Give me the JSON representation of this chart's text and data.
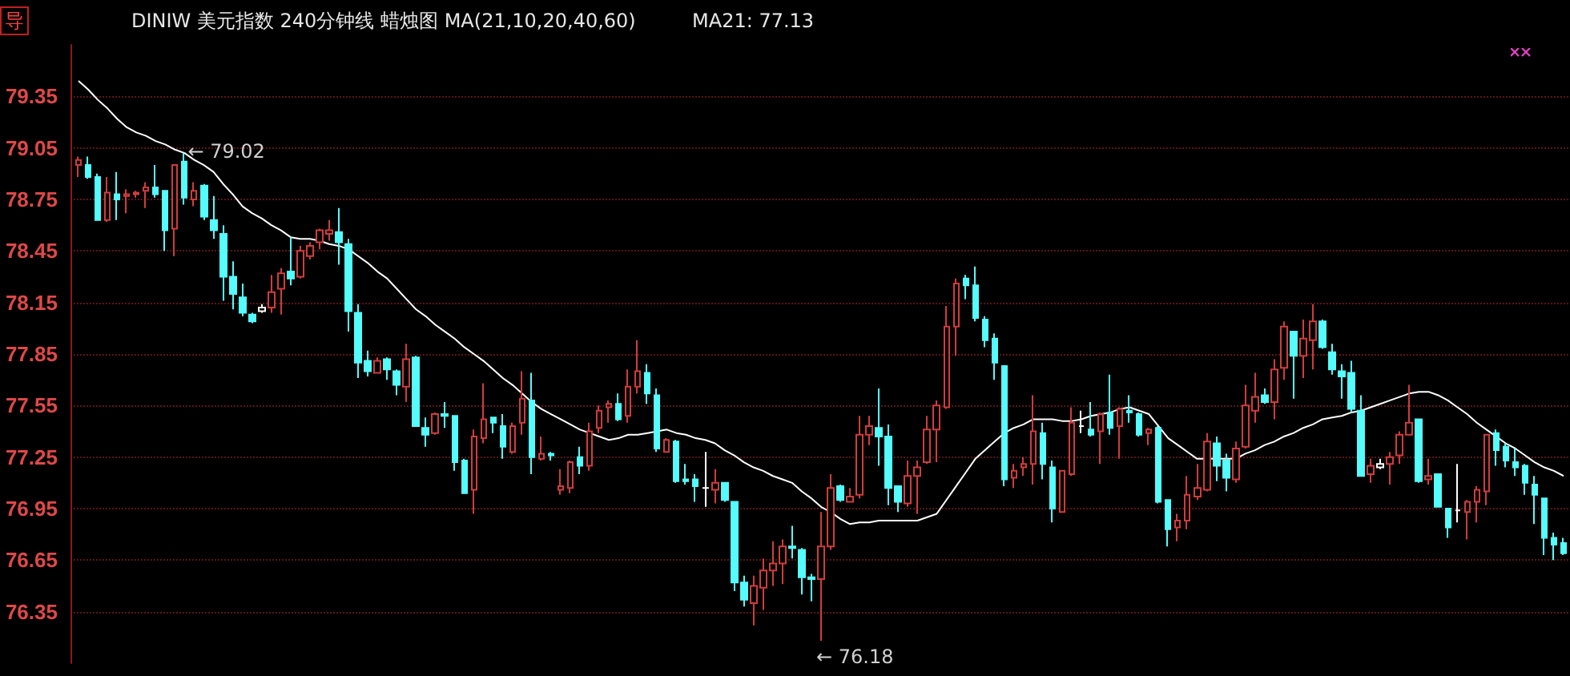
{
  "chart_data": {
    "type": "candlestick",
    "title": "DINIW 美元指数 240分钟线  蜡烛图 MA(21,10,20,40,60)",
    "annotations": [
      "导",
      "MA21: 77.13",
      "← 79.02",
      "← 76.18"
    ],
    "categories": [
      null,
      null,
      null,
      null,
      null,
      null,
      null,
      null,
      null,
      null,
      null,
      null,
      null,
      null,
      null,
      null,
      null,
      null,
      null,
      null,
      null,
      null,
      null,
      null,
      null,
      null,
      null,
      null,
      null,
      null,
      null,
      null,
      null,
      null,
      null,
      null,
      null,
      null,
      null,
      null,
      null,
      null,
      null,
      null,
      null,
      null,
      null,
      null,
      null,
      null,
      null,
      null,
      null,
      null,
      null,
      null,
      null,
      null,
      null,
      null,
      null,
      null,
      null,
      null,
      null,
      null,
      null,
      null,
      null,
      null,
      null,
      null,
      null,
      null,
      null,
      null,
      null,
      null,
      null,
      null,
      null,
      null,
      null,
      null,
      null,
      null,
      null,
      null,
      null,
      null,
      null,
      null,
      null,
      null,
      null,
      null,
      null,
      null,
      null,
      null,
      null,
      null,
      null,
      null,
      null,
      null,
      null,
      null,
      null,
      null,
      null,
      null,
      null,
      null,
      null,
      null,
      null,
      null,
      null,
      null,
      null,
      null,
      null,
      null,
      null,
      null,
      null,
      null,
      null,
      null,
      null,
      null,
      null,
      null,
      null,
      null,
      null,
      null,
      null,
      null,
      null,
      null,
      null,
      null,
      null,
      null,
      null,
      null,
      null,
      null,
      null,
      null,
      null,
      null,
      null
    ],
    "ohlc": [
      [
        78.95,
        79.0,
        78.88,
        78.98
      ],
      [
        78.95,
        79.0,
        78.87,
        78.88
      ],
      [
        78.88,
        78.9,
        78.63,
        78.63
      ],
      [
        78.63,
        78.88,
        78.62,
        78.79
      ],
      [
        78.78,
        78.91,
        78.63,
        78.75
      ],
      [
        78.77,
        78.81,
        78.67,
        78.78
      ],
      [
        78.78,
        78.8,
        78.76,
        78.79
      ],
      [
        78.8,
        78.85,
        78.7,
        78.82
      ],
      [
        78.82,
        78.95,
        78.76,
        78.78
      ],
      [
        78.8,
        78.8,
        78.45,
        78.57
      ],
      [
        78.58,
        78.95,
        78.42,
        78.95
      ],
      [
        78.97,
        79.02,
        78.72,
        78.76
      ],
      [
        78.75,
        78.85,
        78.71,
        78.8
      ],
      [
        78.83,
        78.84,
        78.63,
        78.65
      ],
      [
        78.63,
        78.77,
        78.52,
        78.57
      ],
      [
        78.55,
        78.6,
        78.16,
        78.3
      ],
      [
        78.3,
        78.39,
        78.11,
        78.2
      ],
      [
        78.18,
        78.26,
        78.07,
        78.09
      ],
      [
        78.08,
        78.09,
        78.03,
        78.04
      ],
      [
        78.1,
        78.14,
        78.09,
        78.12
      ],
      [
        78.12,
        78.31,
        78.09,
        78.21
      ],
      [
        78.23,
        78.35,
        78.08,
        78.32
      ],
      [
        78.33,
        78.53,
        78.25,
        78.29
      ],
      [
        78.3,
        78.48,
        78.29,
        78.45
      ],
      [
        78.42,
        78.5,
        78.4,
        78.48
      ],
      [
        78.5,
        78.58,
        78.46,
        78.57
      ],
      [
        78.55,
        78.63,
        78.51,
        78.57
      ],
      [
        78.56,
        78.7,
        78.37,
        78.5
      ],
      [
        78.49,
        78.52,
        77.98,
        78.1
      ],
      [
        78.09,
        78.14,
        77.71,
        77.8
      ],
      [
        77.81,
        77.87,
        77.72,
        77.75
      ],
      [
        77.74,
        77.83,
        77.74,
        77.81
      ],
      [
        77.82,
        77.83,
        77.7,
        77.76
      ],
      [
        77.75,
        77.76,
        77.61,
        77.67
      ],
      [
        77.66,
        77.91,
        77.57,
        77.82
      ],
      [
        77.83,
        77.84,
        77.43,
        77.43
      ],
      [
        77.42,
        77.48,
        77.31,
        77.38
      ],
      [
        77.39,
        77.51,
        77.38,
        77.5
      ],
      [
        77.5,
        77.57,
        77.42,
        77.49
      ],
      [
        77.49,
        77.49,
        77.17,
        77.22
      ],
      [
        77.23,
        77.24,
        77.04,
        77.04
      ],
      [
        77.06,
        77.41,
        76.92,
        77.37
      ],
      [
        77.36,
        77.68,
        77.33,
        77.47
      ],
      [
        77.48,
        77.48,
        77.39,
        77.45
      ],
      [
        77.43,
        77.5,
        77.24,
        77.31
      ],
      [
        77.28,
        77.45,
        77.27,
        77.43
      ],
      [
        77.45,
        77.75,
        77.38,
        77.59
      ],
      [
        77.58,
        77.74,
        77.15,
        77.25
      ],
      [
        77.24,
        77.37,
        77.23,
        77.27
      ],
      [
        77.27,
        77.28,
        77.23,
        77.26
      ],
      [
        77.06,
        77.18,
        77.03,
        77.08
      ],
      [
        77.07,
        77.23,
        77.04,
        77.22
      ],
      [
        77.25,
        77.31,
        77.15,
        77.2
      ],
      [
        77.2,
        77.45,
        77.17,
        77.4
      ],
      [
        77.42,
        77.55,
        77.39,
        77.52
      ],
      [
        77.54,
        77.58,
        77.45,
        77.56
      ],
      [
        77.56,
        77.62,
        77.46,
        77.47
      ],
      [
        77.49,
        77.76,
        77.45,
        77.66
      ],
      [
        77.66,
        77.93,
        77.62,
        77.75
      ],
      [
        77.74,
        77.79,
        77.56,
        77.62
      ],
      [
        77.61,
        77.65,
        77.28,
        77.3
      ],
      [
        77.28,
        77.36,
        77.28,
        77.35
      ],
      [
        77.34,
        77.35,
        77.1,
        77.11
      ],
      [
        77.12,
        77.21,
        77.09,
        77.11
      ],
      [
        77.12,
        77.15,
        76.99,
        77.08
      ],
      [
        77.07,
        77.28,
        76.96,
        77.07
      ],
      [
        77.06,
        77.18,
        76.98,
        77.1
      ],
      [
        77.1,
        77.1,
        76.99,
        77.0
      ],
      [
        76.99,
        76.99,
        76.47,
        76.52
      ],
      [
        76.52,
        76.56,
        76.38,
        76.42
      ],
      [
        76.4,
        76.56,
        76.27,
        76.5
      ],
      [
        76.49,
        76.66,
        76.36,
        76.59
      ],
      [
        76.59,
        76.76,
        76.5,
        76.63
      ],
      [
        76.63,
        76.77,
        76.51,
        76.73
      ],
      [
        76.73,
        76.85,
        76.66,
        76.72
      ],
      [
        76.71,
        76.72,
        76.45,
        76.55
      ],
      [
        76.55,
        76.57,
        76.41,
        76.54
      ],
      [
        76.54,
        76.93,
        76.18,
        76.73
      ],
      [
        76.73,
        77.15,
        76.71,
        77.07
      ],
      [
        77.08,
        77.09,
        76.99,
        77.0
      ],
      [
        76.99,
        77.07,
        76.99,
        77.02
      ],
      [
        77.03,
        77.49,
        77.01,
        77.38
      ],
      [
        77.38,
        77.49,
        77.32,
        77.43
      ],
      [
        77.42,
        77.65,
        77.2,
        77.37
      ],
      [
        77.37,
        77.44,
        76.97,
        77.07
      ],
      [
        77.08,
        77.08,
        76.93,
        76.99
      ],
      [
        76.98,
        77.23,
        76.96,
        77.14
      ],
      [
        77.14,
        77.23,
        76.92,
        77.19
      ],
      [
        77.22,
        77.49,
        77.21,
        77.41
      ],
      [
        77.41,
        77.58,
        77.22,
        77.55
      ],
      [
        77.54,
        78.13,
        77.53,
        78.01
      ],
      [
        78.01,
        78.29,
        77.84,
        78.26
      ],
      [
        78.29,
        78.31,
        78.17,
        78.25
      ],
      [
        78.25,
        78.36,
        78.04,
        78.06
      ],
      [
        78.05,
        78.07,
        77.89,
        77.93
      ],
      [
        77.94,
        77.97,
        77.7,
        77.8
      ],
      [
        77.78,
        77.78,
        77.08,
        77.12
      ],
      [
        77.13,
        77.21,
        77.07,
        77.17
      ],
      [
        77.19,
        77.25,
        77.14,
        77.21
      ],
      [
        77.21,
        77.61,
        77.09,
        77.4
      ],
      [
        77.39,
        77.45,
        77.12,
        77.21
      ],
      [
        77.19,
        77.23,
        76.87,
        76.95
      ],
      [
        76.93,
        77.17,
        76.93,
        77.17
      ],
      [
        77.15,
        77.54,
        77.14,
        77.45
      ],
      [
        77.43,
        77.52,
        77.39,
        77.43
      ],
      [
        77.41,
        77.57,
        77.37,
        77.38
      ],
      [
        77.4,
        77.51,
        77.21,
        77.5
      ],
      [
        77.51,
        77.73,
        77.38,
        77.42
      ],
      [
        77.43,
        77.54,
        77.24,
        77.53
      ],
      [
        77.52,
        77.61,
        77.45,
        77.51
      ],
      [
        77.5,
        77.51,
        77.37,
        77.38
      ],
      [
        77.39,
        77.42,
        77.32,
        77.41
      ],
      [
        77.42,
        77.43,
        76.98,
        76.99
      ],
      [
        77.0,
        77.0,
        76.73,
        76.83
      ],
      [
        76.84,
        76.92,
        76.76,
        76.88
      ],
      [
        76.88,
        77.14,
        76.83,
        77.03
      ],
      [
        77.02,
        77.21,
        77.0,
        77.07
      ],
      [
        77.06,
        77.39,
        77.05,
        77.34
      ],
      [
        77.33,
        77.37,
        77.11,
        77.2
      ],
      [
        77.23,
        77.27,
        77.05,
        77.13
      ],
      [
        77.12,
        77.34,
        77.1,
        77.3
      ],
      [
        77.31,
        77.67,
        77.3,
        77.55
      ],
      [
        77.52,
        77.74,
        77.45,
        77.6
      ],
      [
        77.61,
        77.65,
        77.56,
        77.57
      ],
      [
        77.57,
        77.82,
        77.47,
        77.76
      ],
      [
        77.77,
        78.04,
        77.7,
        78.01
      ],
      [
        77.98,
        77.98,
        77.59,
        77.84
      ],
      [
        77.84,
        78.05,
        77.71,
        77.94
      ],
      [
        77.93,
        78.14,
        77.76,
        78.04
      ],
      [
        78.04,
        78.05,
        77.88,
        77.89
      ],
      [
        77.86,
        77.91,
        77.73,
        77.76
      ],
      [
        77.75,
        77.79,
        77.59,
        77.72
      ],
      [
        77.74,
        77.81,
        77.51,
        77.53
      ],
      [
        77.52,
        77.61,
        77.14,
        77.14
      ],
      [
        77.15,
        77.24,
        77.1,
        77.2
      ],
      [
        77.19,
        77.24,
        77.18,
        77.21
      ],
      [
        77.21,
        77.28,
        77.09,
        77.25
      ],
      [
        77.26,
        77.4,
        77.21,
        77.38
      ],
      [
        77.38,
        77.67,
        77.38,
        77.45
      ],
      [
        77.47,
        77.47,
        77.1,
        77.11
      ],
      [
        77.12,
        77.24,
        77.09,
        77.14
      ],
      [
        77.15,
        77.15,
        76.96,
        76.96
      ],
      [
        76.95,
        76.95,
        76.78,
        76.84
      ],
      [
        76.94,
        77.21,
        76.87,
        76.94
      ],
      [
        76.93,
        77.0,
        76.77,
        76.99
      ],
      [
        76.99,
        77.08,
        76.87,
        77.06
      ],
      [
        77.05,
        77.38,
        76.97,
        77.38
      ],
      [
        77.39,
        77.41,
        77.2,
        77.29
      ],
      [
        77.31,
        77.33,
        77.19,
        77.23
      ],
      [
        77.22,
        77.3,
        77.14,
        77.19
      ],
      [
        77.2,
        77.21,
        77.03,
        77.1
      ],
      [
        77.09,
        77.14,
        76.86,
        77.03
      ],
      [
        77.01,
        77.01,
        76.68,
        76.78
      ],
      [
        76.78,
        76.81,
        76.65,
        76.74
      ],
      [
        76.75,
        76.78,
        76.68,
        76.69
      ]
    ],
    "colors": [
      "#d23c3c",
      "#54fcfc",
      "#54fcfc",
      "#d23c3c",
      "#54fcfc",
      "#d23c3c",
      "#d23c3c",
      "#d23c3c",
      "#54fcfc",
      "#54fcfc",
      "#d23c3c",
      "#54fcfc",
      "#d23c3c",
      "#54fcfc",
      "#54fcfc",
      "#54fcfc",
      "#54fcfc",
      "#54fcfc",
      "#54fcfc",
      "#ffffff",
      "#d23c3c",
      "#d23c3c",
      "#54fcfc",
      "#d23c3c",
      "#d23c3c",
      "#d23c3c",
      "#d23c3c",
      "#54fcfc",
      "#54fcfc",
      "#54fcfc",
      "#54fcfc",
      "#d23c3c",
      "#54fcfc",
      "#54fcfc",
      "#d23c3c",
      "#54fcfc",
      "#54fcfc",
      "#d23c3c",
      "#54fcfc",
      "#54fcfc",
      "#54fcfc",
      "#d23c3c",
      "#d23c3c",
      "#54fcfc",
      "#54fcfc",
      "#d23c3c",
      "#d23c3c",
      "#54fcfc",
      "#d23c3c",
      "#54fcfc",
      "#d23c3c",
      "#d23c3c",
      "#54fcfc",
      "#d23c3c",
      "#d23c3c",
      "#d23c3c",
      "#54fcfc",
      "#d23c3c",
      "#d23c3c",
      "#54fcfc",
      "#54fcfc",
      "#d23c3c",
      "#54fcfc",
      "#54fcfc",
      "#54fcfc",
      "#ffffff",
      "#d23c3c",
      "#54fcfc",
      "#54fcfc",
      "#54fcfc",
      "#d23c3c",
      "#d23c3c",
      "#d23c3c",
      "#d23c3c",
      "#54fcfc",
      "#54fcfc",
      "#54fcfc",
      "#d23c3c",
      "#d23c3c",
      "#54fcfc",
      "#d23c3c",
      "#d23c3c",
      "#d23c3c",
      "#54fcfc",
      "#54fcfc",
      "#54fcfc",
      "#d23c3c",
      "#d23c3c",
      "#d23c3c",
      "#d23c3c",
      "#d23c3c",
      "#d23c3c",
      "#54fcfc",
      "#54fcfc",
      "#54fcfc",
      "#54fcfc",
      "#54fcfc",
      "#d23c3c",
      "#d23c3c",
      "#d23c3c",
      "#54fcfc",
      "#54fcfc",
      "#d23c3c",
      "#d23c3c",
      "#ffffff",
      "#54fcfc",
      "#d23c3c",
      "#54fcfc",
      "#d23c3c",
      "#54fcfc",
      "#54fcfc",
      "#d23c3c",
      "#54fcfc",
      "#54fcfc",
      "#d23c3c",
      "#d23c3c",
      "#d23c3c",
      "#d23c3c",
      "#54fcfc",
      "#54fcfc",
      "#d23c3c",
      "#d23c3c",
      "#d23c3c",
      "#54fcfc",
      "#d23c3c",
      "#d23c3c",
      "#54fcfc",
      "#d23c3c",
      "#d23c3c",
      "#54fcfc",
      "#54fcfc",
      "#54fcfc",
      "#54fcfc",
      "#54fcfc",
      "#d23c3c",
      "#ffffff",
      "#d23c3c",
      "#d23c3c",
      "#d23c3c",
      "#54fcfc",
      "#d23c3c",
      "#54fcfc",
      "#54fcfc",
      "#ffffff",
      "#d23c3c",
      "#d23c3c",
      "#d23c3c",
      "#54fcfc",
      "#54fcfc",
      "#54fcfc",
      "#54fcfc",
      "#54fcfc",
      "#54fcfc",
      "#54fcfc",
      "#54fcfc"
    ],
    "series": [
      {
        "type": "line",
        "color": "#ffffff",
        "values": [
          79.44,
          79.39,
          79.33,
          79.28,
          79.22,
          79.17,
          79.14,
          79.12,
          79.09,
          79.07,
          79.04,
          79.02,
          78.98,
          78.95,
          78.91,
          78.84,
          78.78,
          78.71,
          78.67,
          78.64,
          78.6,
          78.57,
          78.53,
          78.52,
          78.52,
          78.51,
          78.49,
          78.48,
          78.46,
          78.42,
          78.38,
          78.33,
          78.29,
          78.23,
          78.17,
          78.11,
          78.07,
          78.02,
          77.98,
          77.94,
          77.89,
          77.85,
          77.81,
          77.76,
          77.71,
          77.67,
          77.62,
          77.57,
          77.53,
          77.5,
          77.47,
          77.44,
          77.41,
          77.39,
          77.37,
          77.35,
          77.36,
          77.38,
          77.38,
          77.39,
          77.4,
          77.41,
          77.39,
          77.38,
          77.36,
          77.35,
          77.33,
          77.29,
          77.26,
          77.22,
          77.19,
          77.17,
          77.14,
          77.12,
          77.1,
          77.05,
          77.01,
          76.96,
          76.93,
          76.89,
          76.86,
          76.87,
          76.87,
          76.88,
          76.88,
          76.88,
          76.88,
          76.88,
          76.9,
          76.92,
          77.0,
          77.08,
          77.16,
          77.24,
          77.29,
          77.34,
          77.39,
          77.42,
          77.44,
          77.47,
          77.47,
          77.47,
          77.46,
          77.46,
          77.47,
          77.49,
          77.5,
          77.51,
          77.53,
          77.54,
          77.52,
          77.5,
          77.43,
          77.36,
          77.32,
          77.28,
          77.24,
          77.24,
          77.24,
          77.24,
          77.24,
          77.27,
          77.29,
          77.32,
          77.34,
          77.37,
          77.39,
          77.42,
          77.44,
          77.47,
          77.48,
          77.49,
          77.51,
          77.52,
          77.54,
          77.56,
          77.58,
          77.6,
          77.62,
          77.63,
          77.63,
          77.61,
          77.58,
          77.54,
          77.5,
          77.45,
          77.41,
          77.37,
          77.33,
          77.3,
          77.26,
          77.22,
          77.19,
          77.17,
          77.14
        ]
      }
    ],
    "ylim": [
      76.05,
      79.65
    ],
    "yticks": [
      76.35,
      76.65,
      76.95,
      77.25,
      77.55,
      77.85,
      78.15,
      78.45,
      78.75,
      79.05,
      79.35
    ],
    "grid": "y",
    "tick_labels": "y",
    "marker": "none",
    "line_style": "solid"
  }
}
